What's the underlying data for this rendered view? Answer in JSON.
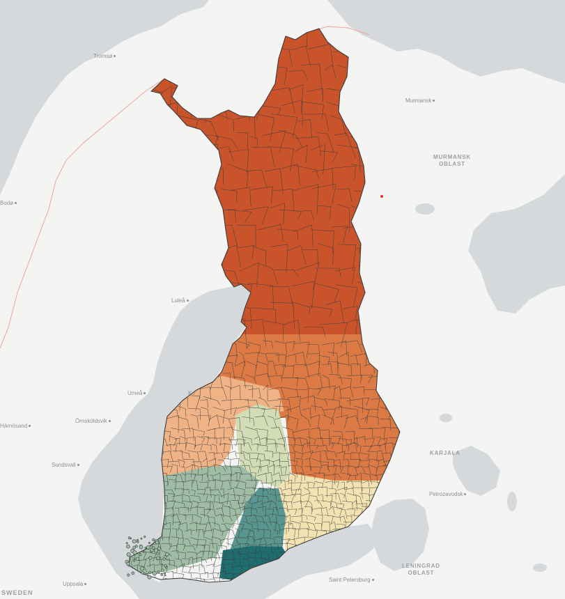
{
  "labels": {
    "tromso": "Tromsø",
    "murmansk": "Murmansk",
    "murmansk_oblast_l1": "MURMANSK",
    "murmansk_oblast_l2": "OBLAST",
    "bodo": "Bodø",
    "lulea": "Luleå",
    "umea": "Umeå",
    "kokkola": "Ko",
    "ornskoldsvik": "Örnsköldsvik",
    "harnosand": "Härnösand",
    "sundsvall": "Sundsvall",
    "karjala": "KARJALA",
    "petrozavodsk": "Petrozavodsk",
    "leningrad_oblast_l1": "LENINGRAD",
    "leningrad_oblast_l2": "OBLAST",
    "saint_petersburg": "Saint Petersburg",
    "uppsala": "Uppsala",
    "sweden": "SWEDEN"
  },
  "colors": {
    "land": "#fafafa",
    "water": "#d6d9dc",
    "border": "#e9a3a3",
    "region_north": "#c9532a",
    "region_mid": "#dc7a45",
    "region_west": "#efb385",
    "region_central": "#d2dcb5",
    "region_southwest": "#9fbca5",
    "region_southeast": "#f4e3b2",
    "region_south": "#5a9690",
    "region_capital": "#1f6d6e",
    "outline": "#3b3b3b",
    "marker": "#e0302a"
  }
}
